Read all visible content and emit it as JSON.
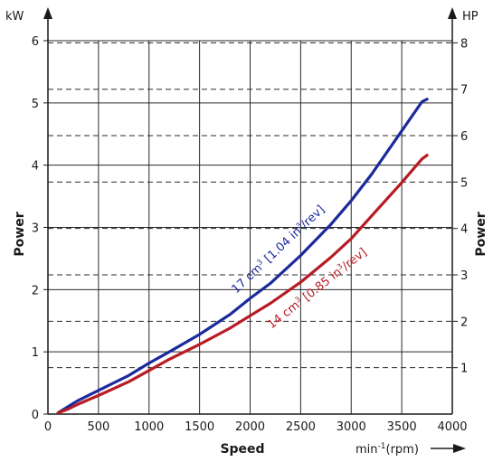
{
  "chart_data": {
    "type": "line",
    "xlabel": "Speed",
    "x_unit": "min",
    "x_unit_sup": "-1",
    "x_unit_suffix": "(rpm)",
    "ylabel_left": "Power",
    "y_unit_left": "kW",
    "ylabel_right": "Power",
    "y_unit_right": "HP",
    "xlim": [
      0,
      4000
    ],
    "ylim_left": [
      0,
      6
    ],
    "ylim_right_hp": [
      0,
      8.046
    ],
    "x_ticks": [
      0,
      500,
      1000,
      1500,
      2000,
      2500,
      3000,
      3500,
      4000
    ],
    "y_ticks_left": [
      0,
      1,
      2,
      3,
      4,
      5,
      6
    ],
    "y_ticks_right": [
      1,
      2,
      3,
      4,
      5,
      6,
      7,
      8
    ],
    "grid": true,
    "series": [
      {
        "label_main": "17 cm",
        "label_sup1": "3",
        "label_mid": " [1.04 in",
        "label_sup2": "3",
        "label_end": "/rev]",
        "color": "#1c2a9c",
        "x": [
          100,
          200,
          300,
          500,
          800,
          1000,
          1200,
          1500,
          1800,
          2000,
          2200,
          2500,
          2800,
          3000,
          3200,
          3500,
          3700,
          3750
        ],
        "y": [
          0.02,
          0.12,
          0.22,
          0.38,
          0.62,
          0.82,
          1.0,
          1.28,
          1.6,
          1.86,
          2.1,
          2.55,
          3.05,
          3.43,
          3.85,
          4.55,
          5.02,
          5.06
        ]
      },
      {
        "label_main": "14 cm",
        "label_sup1": "3",
        "label_mid": " [0.85 in",
        "label_sup2": "3",
        "label_end": "/rev]",
        "color": "#b71c24",
        "x": [
          100,
          200,
          300,
          500,
          800,
          1000,
          1200,
          1500,
          1800,
          2000,
          2200,
          2500,
          2800,
          3000,
          3200,
          3500,
          3700,
          3750
        ],
        "y": [
          0.02,
          0.08,
          0.16,
          0.3,
          0.52,
          0.7,
          0.88,
          1.12,
          1.38,
          1.58,
          1.78,
          2.12,
          2.52,
          2.82,
          3.18,
          3.72,
          4.1,
          4.16
        ]
      }
    ]
  }
}
